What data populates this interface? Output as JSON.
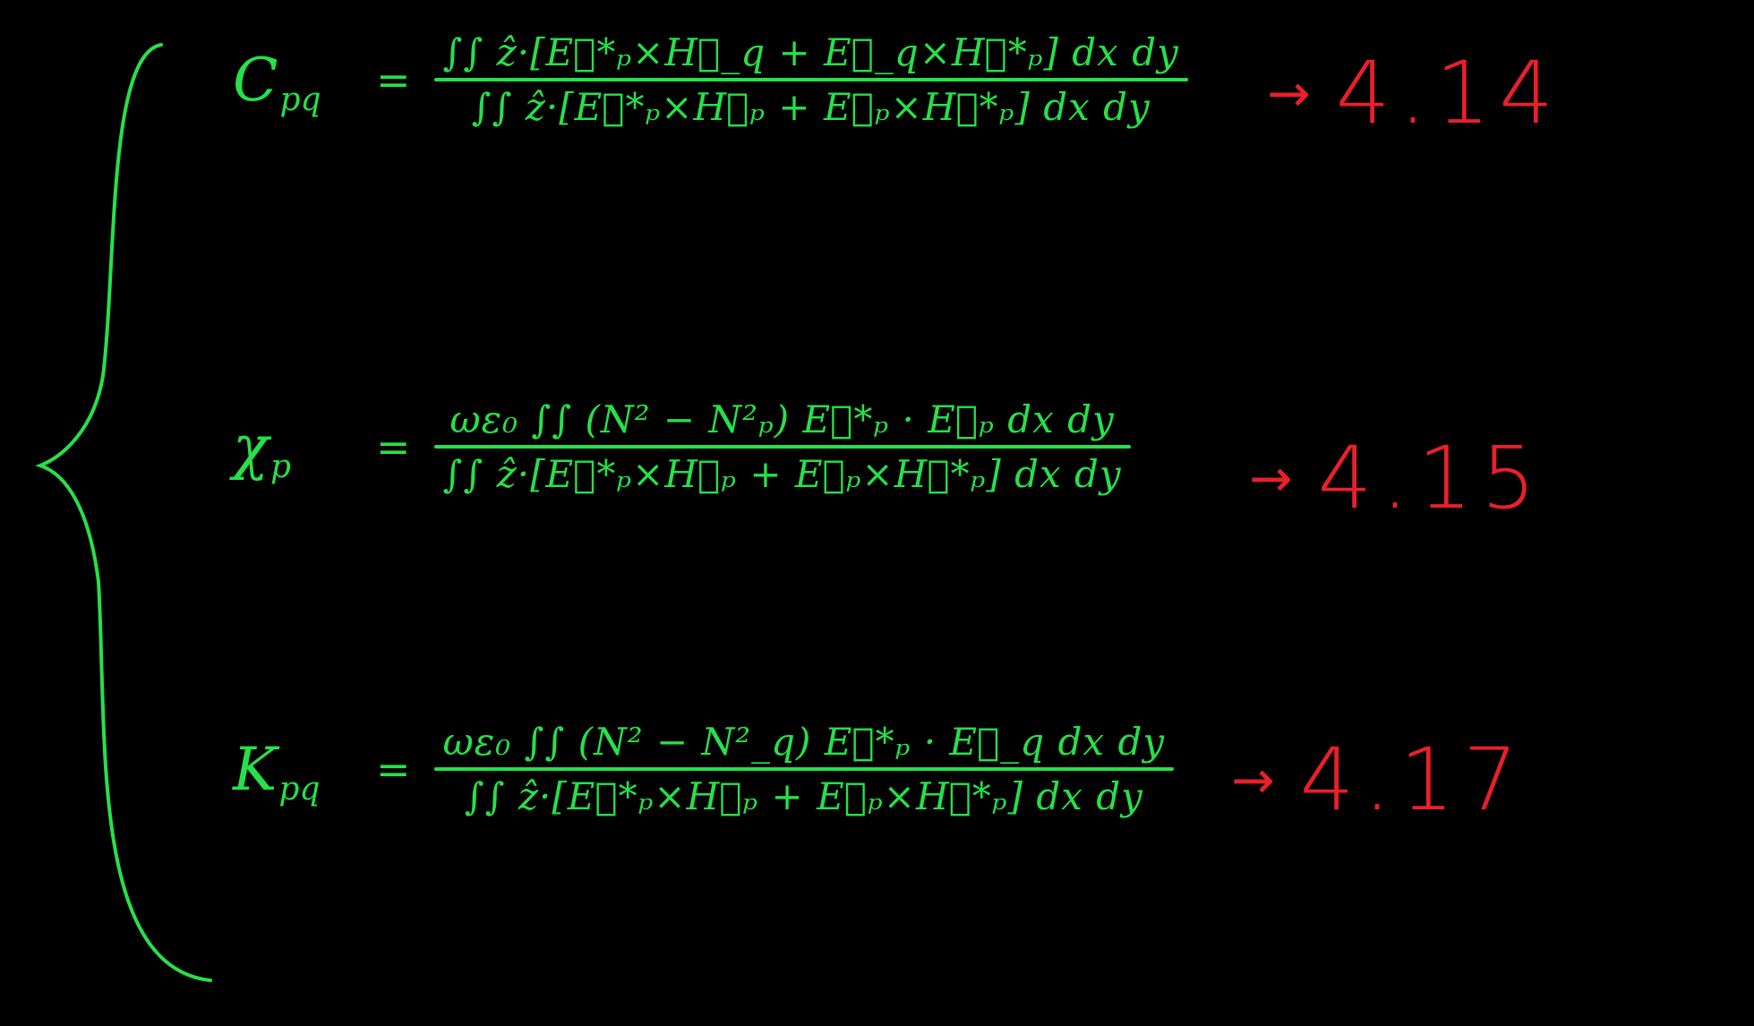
{
  "equations": [
    {
      "lhs": "C",
      "lhs_sub": "pq",
      "equals": "=",
      "numerator": "∫∫ ẑ·[E⃗*ₚ×H⃗_q + E⃗_q×H⃗*ₚ] dx dy",
      "denominator": "∫∫ ẑ·[E⃗*ₚ×H⃗ₚ + E⃗ₚ×H⃗*ₚ] dx dy",
      "arrow": "→",
      "ref": "4.14"
    },
    {
      "lhs": "χ",
      "lhs_sub": "p",
      "equals": "=",
      "numerator": "ωε₀ ∫∫ (N² − N²ₚ) E⃗*ₚ · E⃗ₚ dx dy",
      "denominator": "∫∫ ẑ·[E⃗*ₚ×H⃗ₚ + E⃗ₚ×H⃗*ₚ] dx dy",
      "arrow": "→",
      "ref": "4.15"
    },
    {
      "lhs": "K",
      "lhs_sub": "pq",
      "equals": "=",
      "numerator": "ωε₀ ∫∫ (N² − N²_q) E⃗*ₚ · E⃗_q dx dy",
      "denominator": "∫∫ ẑ·[E⃗*ₚ×H⃗ₚ + E⃗ₚ×H⃗*ₚ] dx dy",
      "arrow": "→",
      "ref": "4.17"
    }
  ],
  "colors": {
    "background": "#000000",
    "ink_green": "#27e04a",
    "ink_red": "#e8202a"
  }
}
